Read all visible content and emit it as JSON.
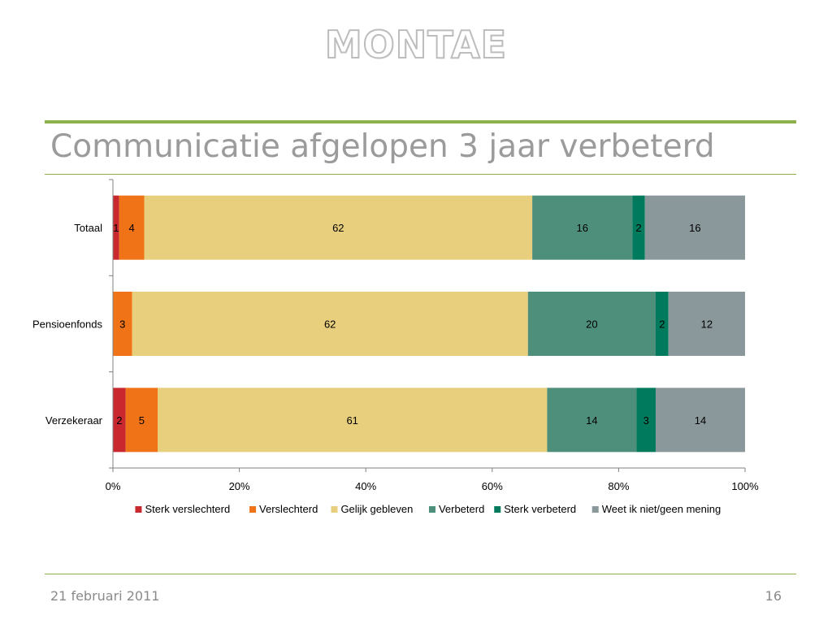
{
  "slide": {
    "logo": "MONTAE",
    "title": "Communicatie afgelopen 3 jaar verbeterd",
    "date": "21 februari 2011",
    "page_number": "16"
  },
  "colors": {
    "accent_rule": "#8db04a",
    "title_text": "#9b9b9b"
  },
  "chart_data": {
    "type": "bar",
    "orientation": "horizontal",
    "stacked": "percent",
    "categories": [
      "Totaal",
      "Pensioenfonds",
      "Verzekeraar"
    ],
    "series": [
      {
        "name": "Sterk verslechterd",
        "color": "#c8282e",
        "values": [
          1,
          0,
          2
        ]
      },
      {
        "name": "Verslechterd",
        "color": "#f07318",
        "values": [
          4,
          3,
          5
        ]
      },
      {
        "name": "Gelijk gebleven",
        "color": "#e8cf7d",
        "values": [
          62,
          62,
          61
        ]
      },
      {
        "name": "Verbeterd",
        "color": "#4d8f7b",
        "values": [
          16,
          20,
          14
        ]
      },
      {
        "name": "Sterk verbeterd",
        "color": "#007a5c",
        "values": [
          2,
          2,
          3
        ]
      },
      {
        "name": "Weet ik niet/geen mening",
        "color": "#8a979b",
        "values": [
          16,
          12,
          14
        ]
      }
    ],
    "data_labels": [
      [
        "1",
        "",
        "2"
      ],
      [
        "4",
        "3",
        "5"
      ],
      [
        "62",
        "62",
        "61"
      ],
      [
        "16",
        "20",
        "14"
      ],
      [
        "2",
        "2",
        "3"
      ],
      [
        "16",
        "12",
        "14"
      ]
    ],
    "x_ticks": [
      "0%",
      "20%",
      "40%",
      "60%",
      "80%",
      "100%"
    ],
    "xlim": [
      0,
      100
    ],
    "grid": false,
    "legend_position": "bottom"
  }
}
